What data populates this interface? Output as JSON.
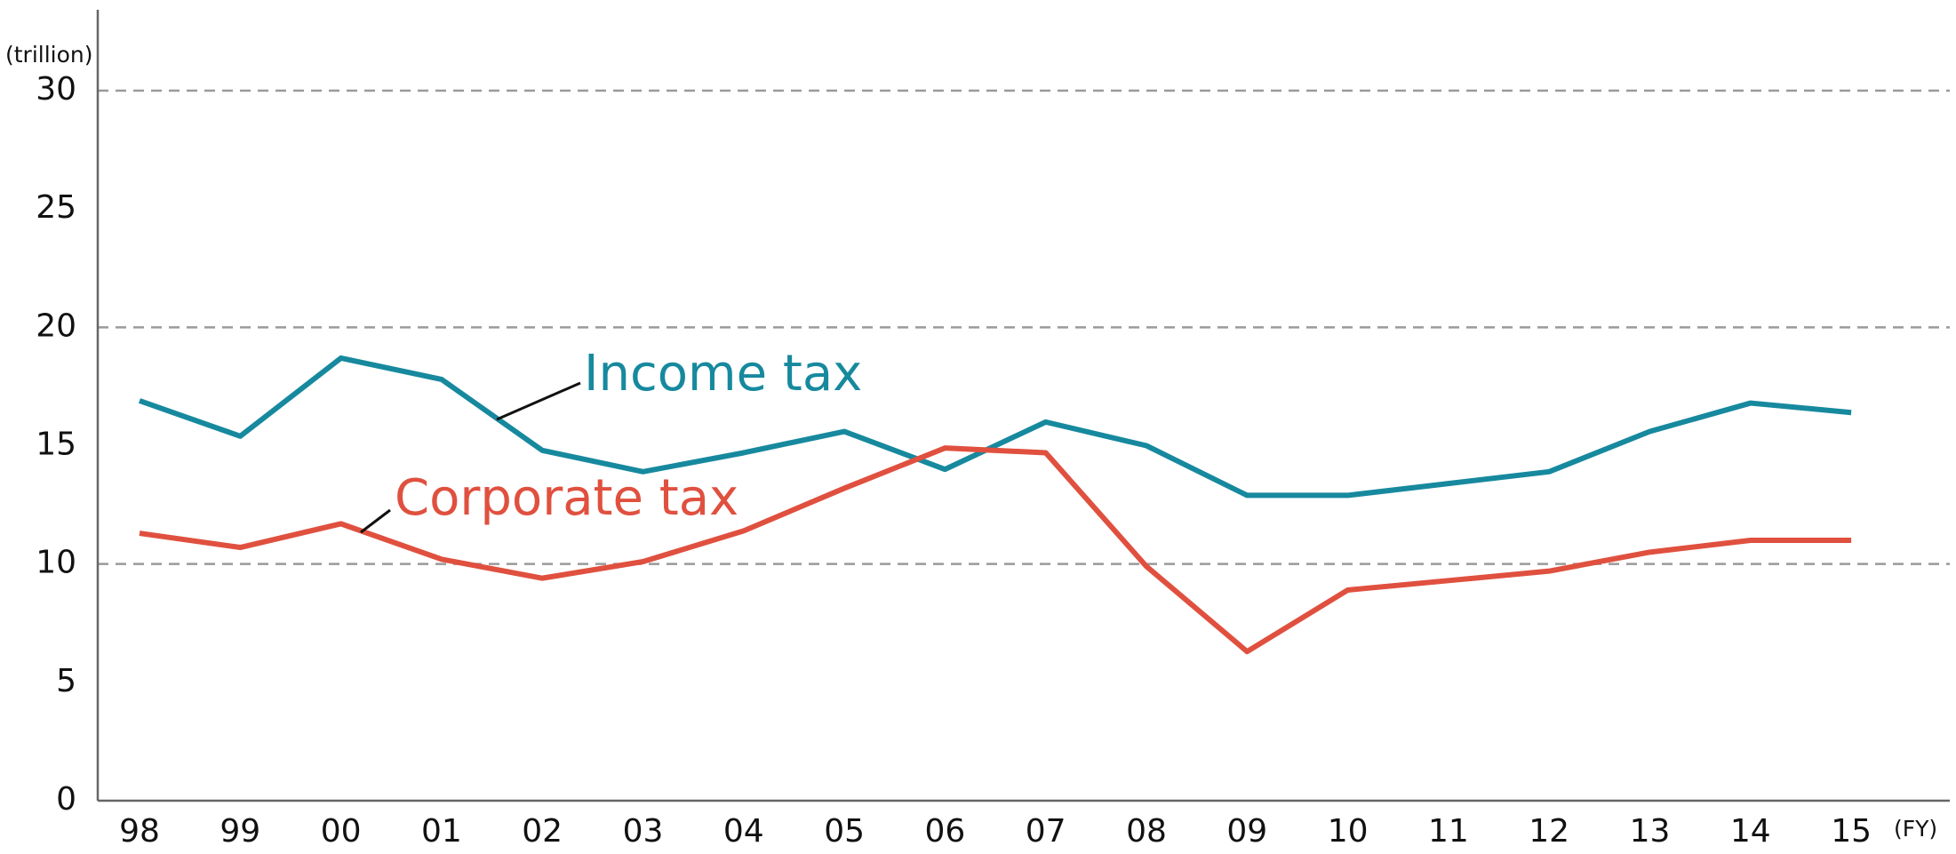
{
  "chart_data": {
    "type": "line",
    "y_unit": "(trillion)",
    "x_unit": "(FY)",
    "categories": [
      "98",
      "99",
      "00",
      "01",
      "02",
      "03",
      "04",
      "05",
      "06",
      "07",
      "08",
      "09",
      "10",
      "11",
      "12",
      "13",
      "14",
      "15"
    ],
    "series": [
      {
        "name": "Income tax",
        "color": "#17899e",
        "values": [
          16.9,
          15.4,
          18.7,
          17.8,
          14.8,
          13.9,
          14.7,
          15.6,
          14.0,
          16.0,
          15.0,
          12.9,
          12.9,
          13.4,
          13.9,
          15.6,
          16.8,
          16.4
        ]
      },
      {
        "name": "Corporate tax",
        "color": "#e0503f",
        "values": [
          11.3,
          10.7,
          11.7,
          10.2,
          9.4,
          10.1,
          11.4,
          13.2,
          14.9,
          14.7,
          9.9,
          6.3,
          8.9,
          9.3,
          9.7,
          10.5,
          11.0,
          11.0
        ]
      }
    ],
    "ylim": [
      0,
      30
    ],
    "yticks": [
      0,
      5,
      10,
      15,
      20,
      25,
      30
    ],
    "grid_lines": [
      10,
      20,
      30
    ]
  }
}
